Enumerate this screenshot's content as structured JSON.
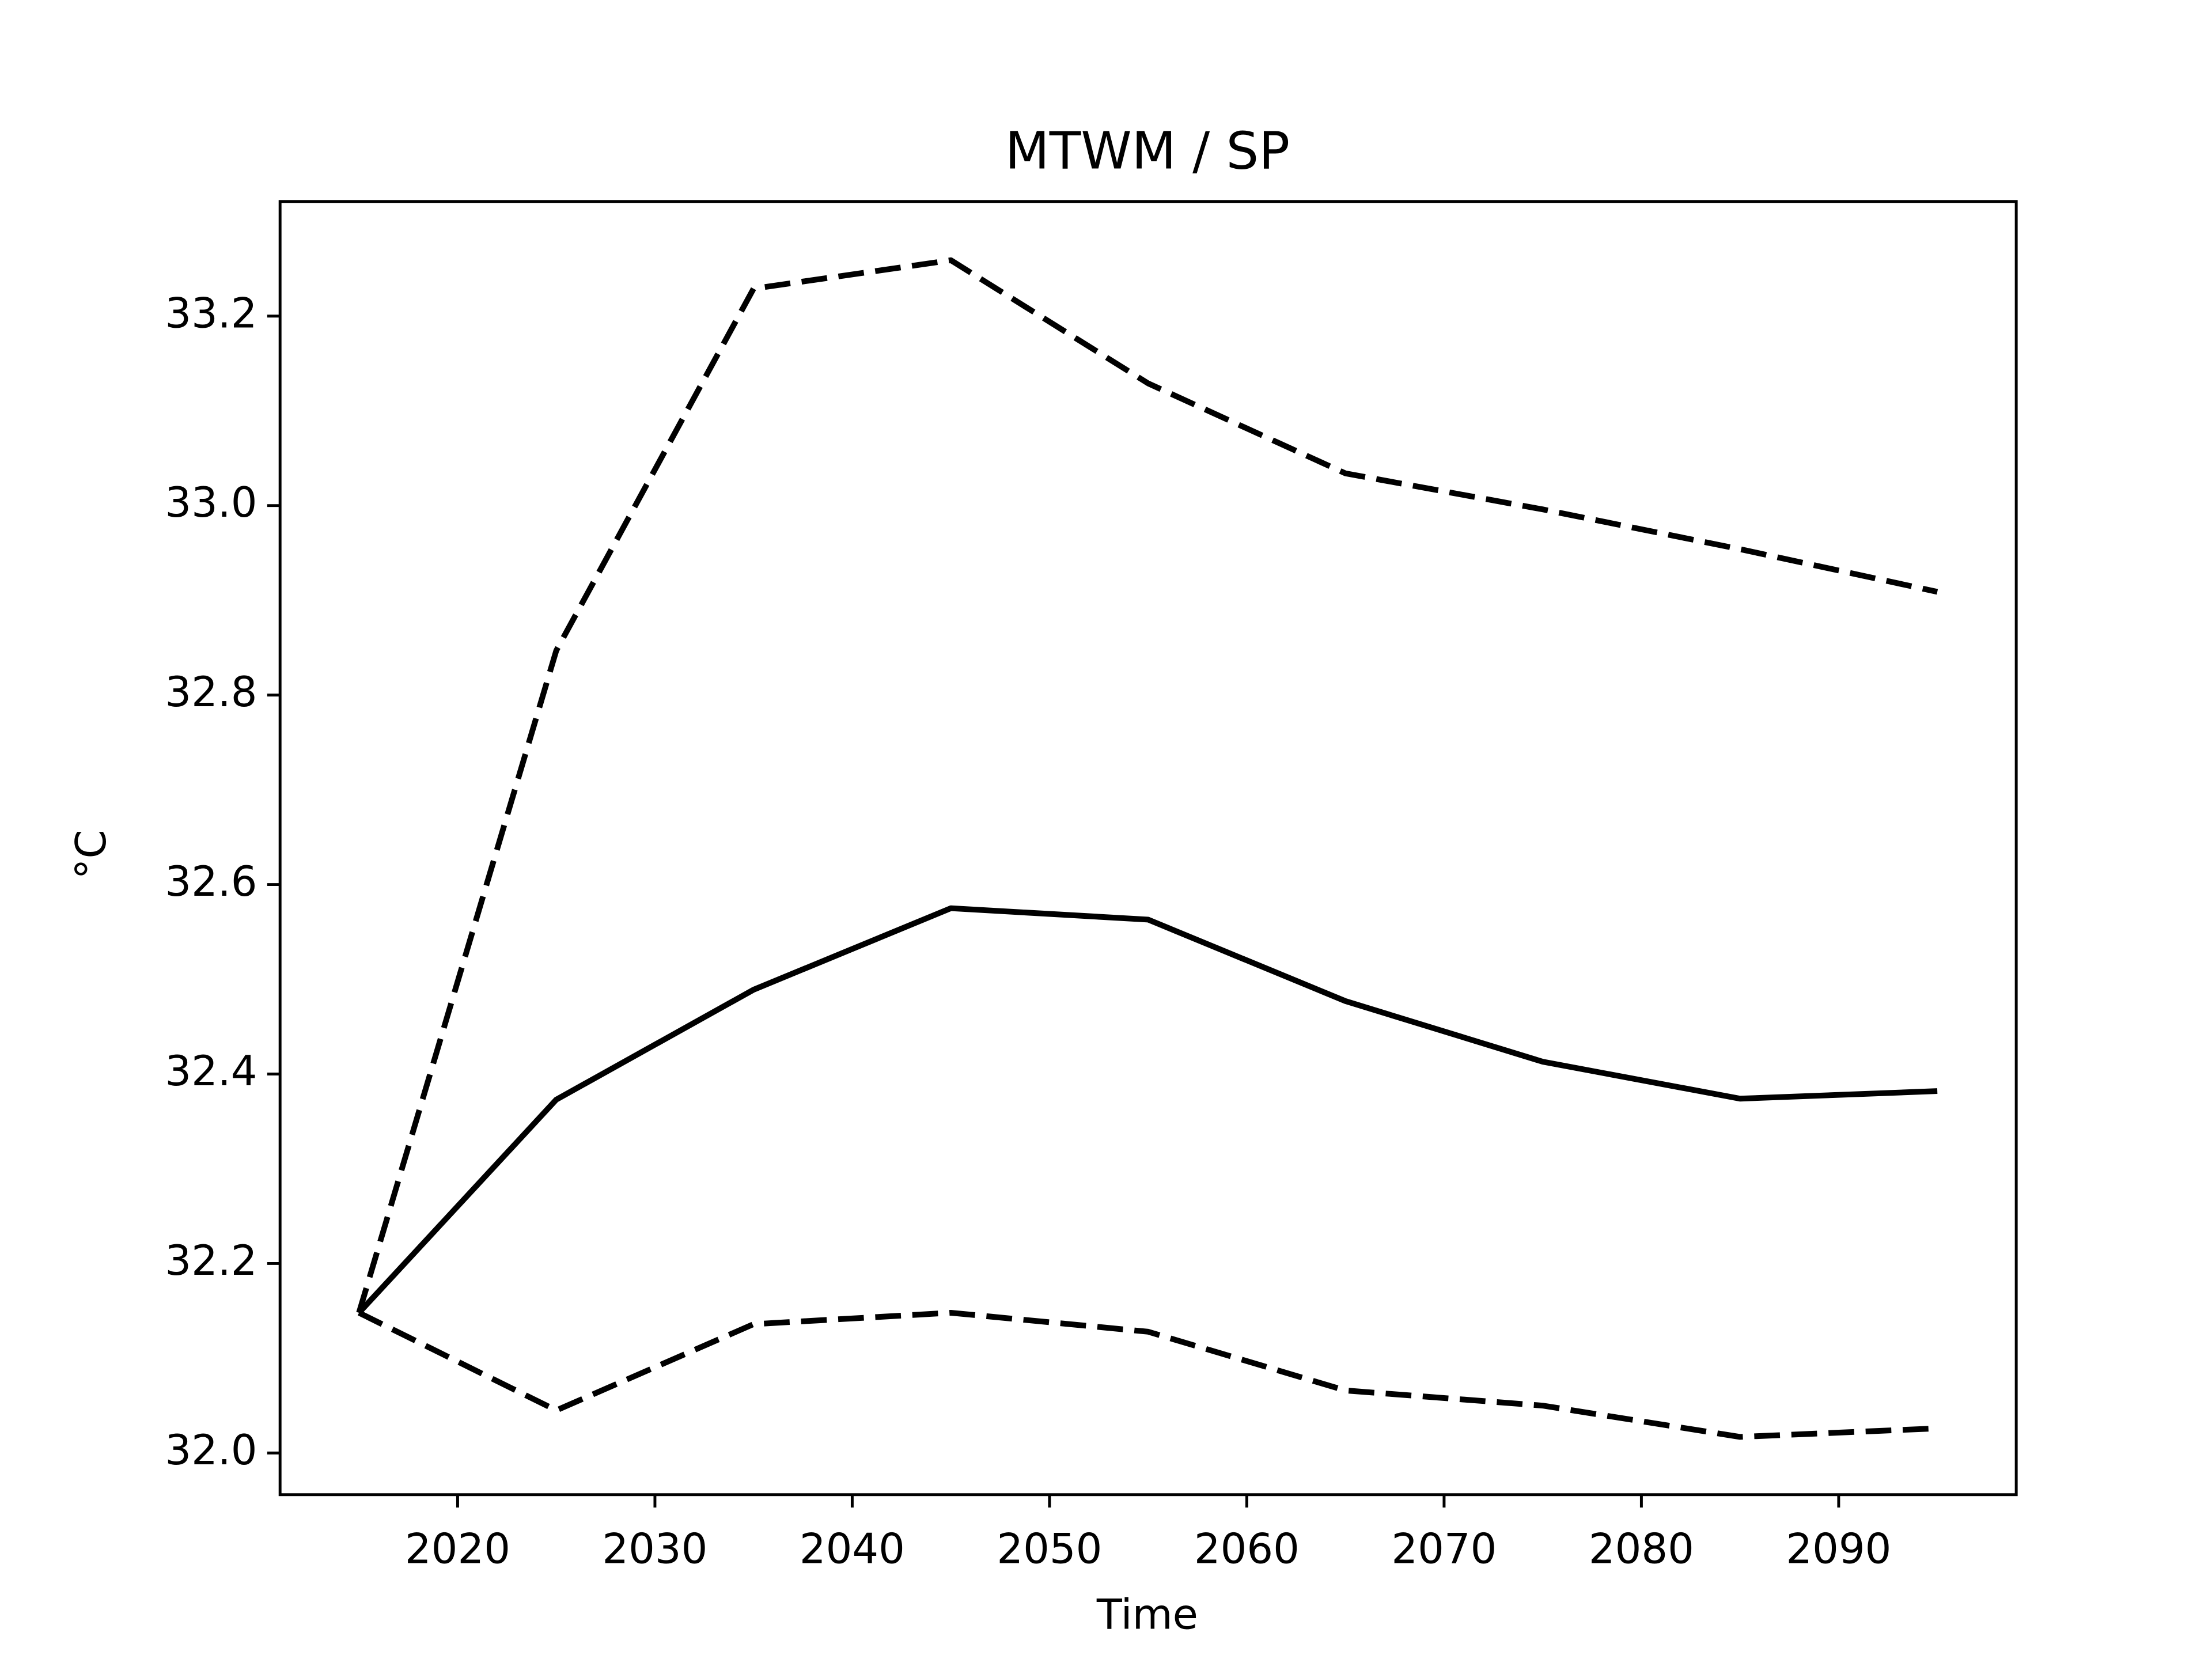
{
  "chart_data": {
    "type": "line",
    "title": "MTWM / SP",
    "xlabel": "Time",
    "ylabel": "°C",
    "x": [
      2015,
      2025,
      2035,
      2045,
      2055,
      2065,
      2075,
      2085,
      2095
    ],
    "series": [
      {
        "color": "#000000",
        "linestyle": "solid",
        "values": [
          32.148,
          32.373,
          32.489,
          32.575,
          32.563,
          32.477,
          32.413,
          32.374,
          32.382
        ]
      },
      {
        "color": "#000000",
        "linestyle": "dashed",
        "values": [
          32.148,
          32.847,
          33.229,
          33.259,
          33.129,
          33.034,
          32.996,
          32.954,
          32.909
        ]
      },
      {
        "color": "#000000",
        "linestyle": "dashed",
        "values": [
          32.148,
          32.045,
          32.136,
          32.148,
          32.128,
          32.066,
          32.05,
          32.017,
          32.026
        ]
      }
    ],
    "xlim": [
      2011,
      2099
    ],
    "ylim": [
      31.956,
      33.321
    ],
    "xticks": [
      2020,
      2030,
      2040,
      2050,
      2060,
      2070,
      2080,
      2090
    ],
    "yticks": [
      {
        "value": 32,
        "label": "32.0"
      },
      32.2,
      32.4,
      32.6,
      32.8,
      {
        "value": 33,
        "label": "33.0"
      },
      33.2
    ],
    "grid": false
  }
}
